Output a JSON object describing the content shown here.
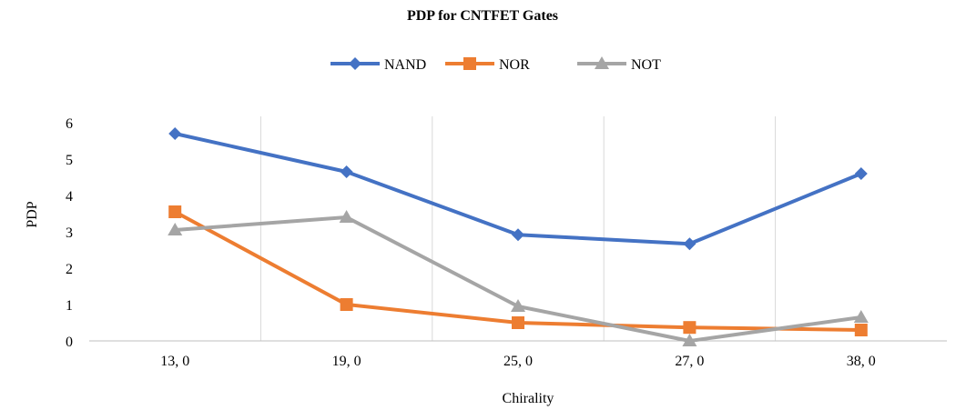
{
  "chart_data": {
    "type": "line",
    "title": "PDP for CNTFET Gates",
    "xlabel": "Chirality",
    "ylabel": "PDP",
    "categories": [
      "13, 0",
      "19, 0",
      "25, 0",
      "27, 0",
      "38, 0"
    ],
    "ylim": [
      0,
      6
    ],
    "yticks": [
      "0",
      "1",
      "2",
      "3",
      "4",
      "5",
      "6"
    ],
    "grid": "vertical",
    "legend_position": "top",
    "series": [
      {
        "name": "NAND",
        "color": "#4472C4",
        "marker": "diamond",
        "values": [
          5.7,
          4.65,
          2.92,
          2.67,
          4.6
        ]
      },
      {
        "name": "NOR",
        "color": "#ED7D31",
        "marker": "square",
        "values": [
          3.55,
          1.0,
          0.5,
          0.37,
          0.3
        ]
      },
      {
        "name": "NOT",
        "color": "#A5A5A5",
        "marker": "triangle",
        "values": [
          3.05,
          3.4,
          0.95,
          0.0,
          0.65
        ]
      }
    ]
  }
}
